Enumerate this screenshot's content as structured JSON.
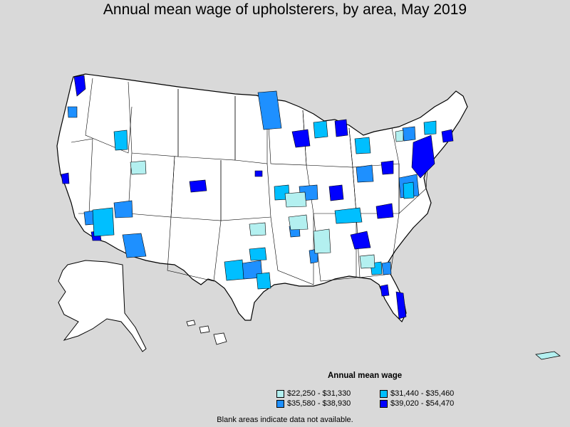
{
  "title": "Annual mean wage of upholsterers, by area, May 2019",
  "legend": {
    "title": "Annual mean wage",
    "items": [
      {
        "label": "$22,250 - $31,330",
        "color": "#b3f0f0"
      },
      {
        "label": "$31,440 - $35,460",
        "color": "#00bfff"
      },
      {
        "label": "$35,580 - $38,930",
        "color": "#1e90ff"
      },
      {
        "label": "$39,020 - $54,470",
        "color": "#0000ff"
      }
    ]
  },
  "note": "Blank areas indicate data not available.",
  "colors": {
    "background": "#d9d9d9",
    "land": "#ffffff",
    "border": "#000000"
  }
}
